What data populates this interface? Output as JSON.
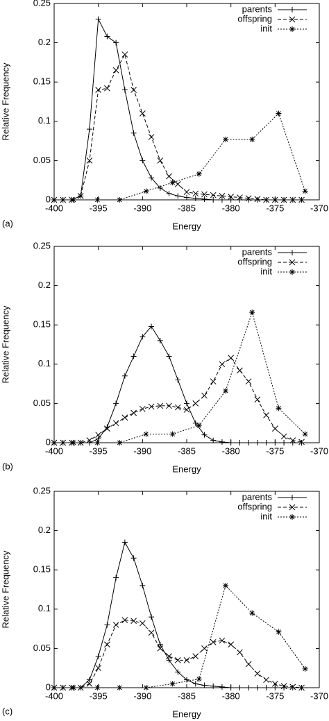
{
  "chart_data": [
    {
      "type": "line",
      "label": "(a)",
      "xlabel": "Energy",
      "ylabel": "Relative Frequency",
      "xlim": [
        -400,
        -370
      ],
      "xticks": [
        -400,
        -395,
        -390,
        -385,
        -380,
        -375,
        -370
      ],
      "ylim": [
        0,
        0.25
      ],
      "yticks": [
        0,
        0.05,
        0.1,
        0.15,
        0.2,
        0.25
      ],
      "legend": "top-right",
      "series": [
        {
          "name": "parents",
          "color": "#000000",
          "marker": "plus",
          "dash": "solid",
          "x": [
            -400,
            -399,
            -398,
            -397,
            -396,
            -395,
            -394,
            -393,
            -392,
            -391,
            -390,
            -389,
            -388,
            -387,
            -386,
            -385,
            -384,
            -383,
            -382,
            -381,
            -380,
            -379,
            -378,
            -377,
            -376,
            -375,
            -374,
            -373,
            -372
          ],
          "values": [
            0,
            0,
            0,
            0.005,
            0.09,
            0.23,
            0.208,
            0.2,
            0.14,
            0.085,
            0.05,
            0.028,
            0.015,
            0.008,
            0.005,
            0.003,
            0.002,
            0.001,
            0,
            0,
            0,
            0,
            0,
            0,
            0,
            0,
            0,
            0,
            0
          ]
        },
        {
          "name": "offspring",
          "color": "#000000",
          "marker": "cross",
          "dash": "dashed",
          "x": [
            -400,
            -399,
            -398,
            -397,
            -396,
            -395,
            -394,
            -393,
            -392,
            -391,
            -390,
            -389,
            -388,
            -387,
            -386,
            -385,
            -384,
            -383,
            -382,
            -381,
            -380,
            -379,
            -378,
            -377,
            -376,
            -375,
            -374,
            -373,
            -372
          ],
          "values": [
            0,
            0,
            0,
            0.005,
            0.05,
            0.14,
            0.142,
            0.165,
            0.185,
            0.14,
            0.11,
            0.08,
            0.05,
            0.03,
            0.02,
            0.01,
            0.008,
            0.007,
            0.006,
            0.005,
            0.004,
            0.003,
            0.002,
            0.001,
            0,
            0,
            0,
            0,
            0
          ]
        },
        {
          "name": "init",
          "color": "#000000",
          "marker": "star",
          "dash": "dotted",
          "x": [
            -400,
            -397.8,
            -395.1,
            -392.6,
            -389.6,
            -386.6,
            -383.6,
            -380.6,
            -377.6,
            -374.6,
            -371.6
          ],
          "values": [
            0,
            0,
            0,
            0,
            0.011,
            0.022,
            0.033,
            0.077,
            0.077,
            0.11,
            0.011
          ]
        }
      ]
    },
    {
      "type": "line",
      "label": "(b)",
      "xlabel": "Energy",
      "ylabel": "Relative Frequency",
      "xlim": [
        -400,
        -370
      ],
      "xticks": [
        -400,
        -395,
        -390,
        -385,
        -380,
        -375,
        -370
      ],
      "ylim": [
        0,
        0.25
      ],
      "yticks": [
        0,
        0.05,
        0.1,
        0.15,
        0.2,
        0.25
      ],
      "legend": "top-right",
      "series": [
        {
          "name": "parents",
          "color": "#000000",
          "marker": "plus",
          "dash": "solid",
          "x": [
            -400,
            -399,
            -398,
            -397,
            -396,
            -395,
            -394,
            -393,
            -392,
            -391,
            -390,
            -389,
            -388,
            -387,
            -386,
            -385,
            -384,
            -383,
            -382,
            -381,
            -380,
            -379,
            -378,
            -377,
            -376,
            -375,
            -374,
            -373,
            -372
          ],
          "values": [
            0,
            0,
            0,
            0,
            0,
            0.005,
            0.02,
            0.05,
            0.085,
            0.11,
            0.135,
            0.148,
            0.13,
            0.11,
            0.08,
            0.05,
            0.025,
            0.01,
            0.003,
            0.001,
            0,
            0,
            0,
            0,
            0,
            0,
            0,
            0,
            0
          ]
        },
        {
          "name": "offspring",
          "color": "#000000",
          "marker": "cross",
          "dash": "dashed",
          "x": [
            -400,
            -399,
            -398,
            -397,
            -396,
            -395,
            -394,
            -393,
            -392,
            -391,
            -390,
            -389,
            -388,
            -387,
            -386,
            -385,
            -384,
            -383,
            -382,
            -381,
            -380,
            -379,
            -378,
            -377,
            -376,
            -375,
            -374,
            -373,
            -372
          ],
          "values": [
            0,
            0,
            0,
            0,
            0.003,
            0.01,
            0.018,
            0.025,
            0.032,
            0.038,
            0.043,
            0.046,
            0.047,
            0.047,
            0.045,
            0.042,
            0.05,
            0.06,
            0.078,
            0.1,
            0.108,
            0.092,
            0.078,
            0.055,
            0.035,
            0.018,
            0.008,
            0.003,
            0.001
          ]
        },
        {
          "name": "init",
          "color": "#000000",
          "marker": "star",
          "dash": "dotted",
          "x": [
            -400,
            -397.8,
            -395.1,
            -392.6,
            -389.6,
            -386.6,
            -383.6,
            -380.6,
            -377.6,
            -374.6,
            -371.6
          ],
          "values": [
            0,
            0,
            0,
            0,
            0.011,
            0.011,
            0.022,
            0.066,
            0.166,
            0.044,
            0.011
          ]
        }
      ]
    },
    {
      "type": "line",
      "label": "(c)",
      "xlabel": "Energy",
      "ylabel": "Relative Frequency",
      "xlim": [
        -400,
        -370
      ],
      "xticks": [
        -400,
        -395,
        -390,
        -385,
        -380,
        -375,
        -370
      ],
      "ylim": [
        0,
        0.25
      ],
      "yticks": [
        0,
        0.05,
        0.1,
        0.15,
        0.2,
        0.25
      ],
      "legend": "top-right",
      "series": [
        {
          "name": "parents",
          "color": "#000000",
          "marker": "plus",
          "dash": "solid",
          "x": [
            -400,
            -399,
            -398,
            -397,
            -396,
            -395,
            -394,
            -393,
            -392,
            -391,
            -390,
            -389,
            -388,
            -387,
            -386,
            -385,
            -384,
            -383,
            -382,
            -381,
            -380,
            -379,
            -378,
            -377,
            -376,
            -375,
            -374,
            -373,
            -372
          ],
          "values": [
            0,
            0,
            0,
            0,
            0.01,
            0.04,
            0.08,
            0.14,
            0.185,
            0.165,
            0.13,
            0.09,
            0.055,
            0.035,
            0.02,
            0.01,
            0.005,
            0.003,
            0.002,
            0.001,
            0,
            0,
            0,
            0,
            0,
            0,
            0,
            0,
            0
          ]
        },
        {
          "name": "offspring",
          "color": "#000000",
          "marker": "cross",
          "dash": "dashed",
          "x": [
            -400,
            -399,
            -398,
            -397,
            -396,
            -395,
            -394,
            -393,
            -392,
            -391,
            -390,
            -389,
            -388,
            -387,
            -386,
            -385,
            -384,
            -383,
            -382,
            -381,
            -380,
            -379,
            -378,
            -377,
            -376,
            -375,
            -374,
            -373,
            -372
          ],
          "values": [
            0,
            0,
            0,
            0,
            0.005,
            0.025,
            0.055,
            0.08,
            0.086,
            0.085,
            0.082,
            0.07,
            0.05,
            0.04,
            0.035,
            0.035,
            0.04,
            0.05,
            0.058,
            0.06,
            0.055,
            0.045,
            0.03,
            0.018,
            0.01,
            0.005,
            0.002,
            0.001,
            0
          ]
        },
        {
          "name": "init",
          "color": "#000000",
          "marker": "star",
          "dash": "dotted",
          "x": [
            -400,
            -397.8,
            -395.1,
            -392.6,
            -389.6,
            -386.6,
            -383.6,
            -380.6,
            -377.6,
            -374.6,
            -371.6
          ],
          "values": [
            0,
            0,
            0,
            0,
            0,
            0.005,
            0.011,
            0.13,
            0.095,
            0.071,
            0.024
          ]
        }
      ]
    }
  ]
}
